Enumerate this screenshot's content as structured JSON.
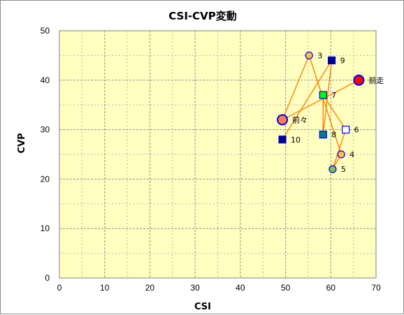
{
  "chart_data": {
    "type": "scatter",
    "title": "CSI-CVP変動",
    "xlabel": "CSI",
    "ylabel": "CVP",
    "xlim": [
      0,
      70
    ],
    "ylim": [
      0,
      50
    ],
    "x_ticks": [
      "0",
      "10",
      "20",
      "30",
      "40",
      "50",
      "60",
      "70"
    ],
    "y_ticks": [
      "0",
      "10",
      "20",
      "30",
      "40",
      "50"
    ],
    "x_tick_values": [
      0,
      10,
      20,
      30,
      40,
      50,
      60,
      70
    ],
    "y_tick_values": [
      0,
      10,
      20,
      30,
      40,
      50
    ],
    "grid": true,
    "line_color": "#ff8000",
    "plot_background": "#ffffc0",
    "points": [
      {
        "label": "前走",
        "x": 66.2,
        "y": 40.0,
        "marker": "circle-large",
        "fill": "#ff0000",
        "stroke": "#0000ff"
      },
      {
        "label": "前々",
        "x": 49.3,
        "y": 32.0,
        "marker": "circle-large",
        "fill": "#ff8040",
        "stroke": "#0000ff"
      },
      {
        "label": "3",
        "x": 55.2,
        "y": 45.0,
        "marker": "circle",
        "fill": "#ffc040",
        "stroke": "#0000ff"
      },
      {
        "label": "4",
        "x": 62.3,
        "y": 25.0,
        "marker": "circle",
        "fill": "#ffc040",
        "stroke": "#0000ff"
      },
      {
        "label": "5",
        "x": 60.4,
        "y": 22.0,
        "marker": "circle",
        "fill": "#80c040",
        "stroke": "#0000ff"
      },
      {
        "label": "6",
        "x": 63.3,
        "y": 30.0,
        "marker": "square",
        "fill": "#ffffff",
        "stroke": "#0000ff"
      },
      {
        "label": "7",
        "x": 58.3,
        "y": 37.0,
        "marker": "square",
        "fill": "#00ff00",
        "stroke": "#0000ff"
      },
      {
        "label": "8",
        "x": 58.3,
        "y": 29.0,
        "marker": "square",
        "fill": "#008080",
        "stroke": "#0000ff"
      },
      {
        "label": "9",
        "x": 60.2,
        "y": 44.0,
        "marker": "square",
        "fill": "#000080",
        "stroke": "#0000ff"
      },
      {
        "label": "10",
        "x": 49.3,
        "y": 28.0,
        "marker": "square",
        "fill": "#000080",
        "stroke": "#0000ff"
      }
    ],
    "path_order": [
      "前走",
      "前々",
      "3",
      "4",
      "5",
      "6",
      "7",
      "8",
      "9",
      "10"
    ]
  }
}
